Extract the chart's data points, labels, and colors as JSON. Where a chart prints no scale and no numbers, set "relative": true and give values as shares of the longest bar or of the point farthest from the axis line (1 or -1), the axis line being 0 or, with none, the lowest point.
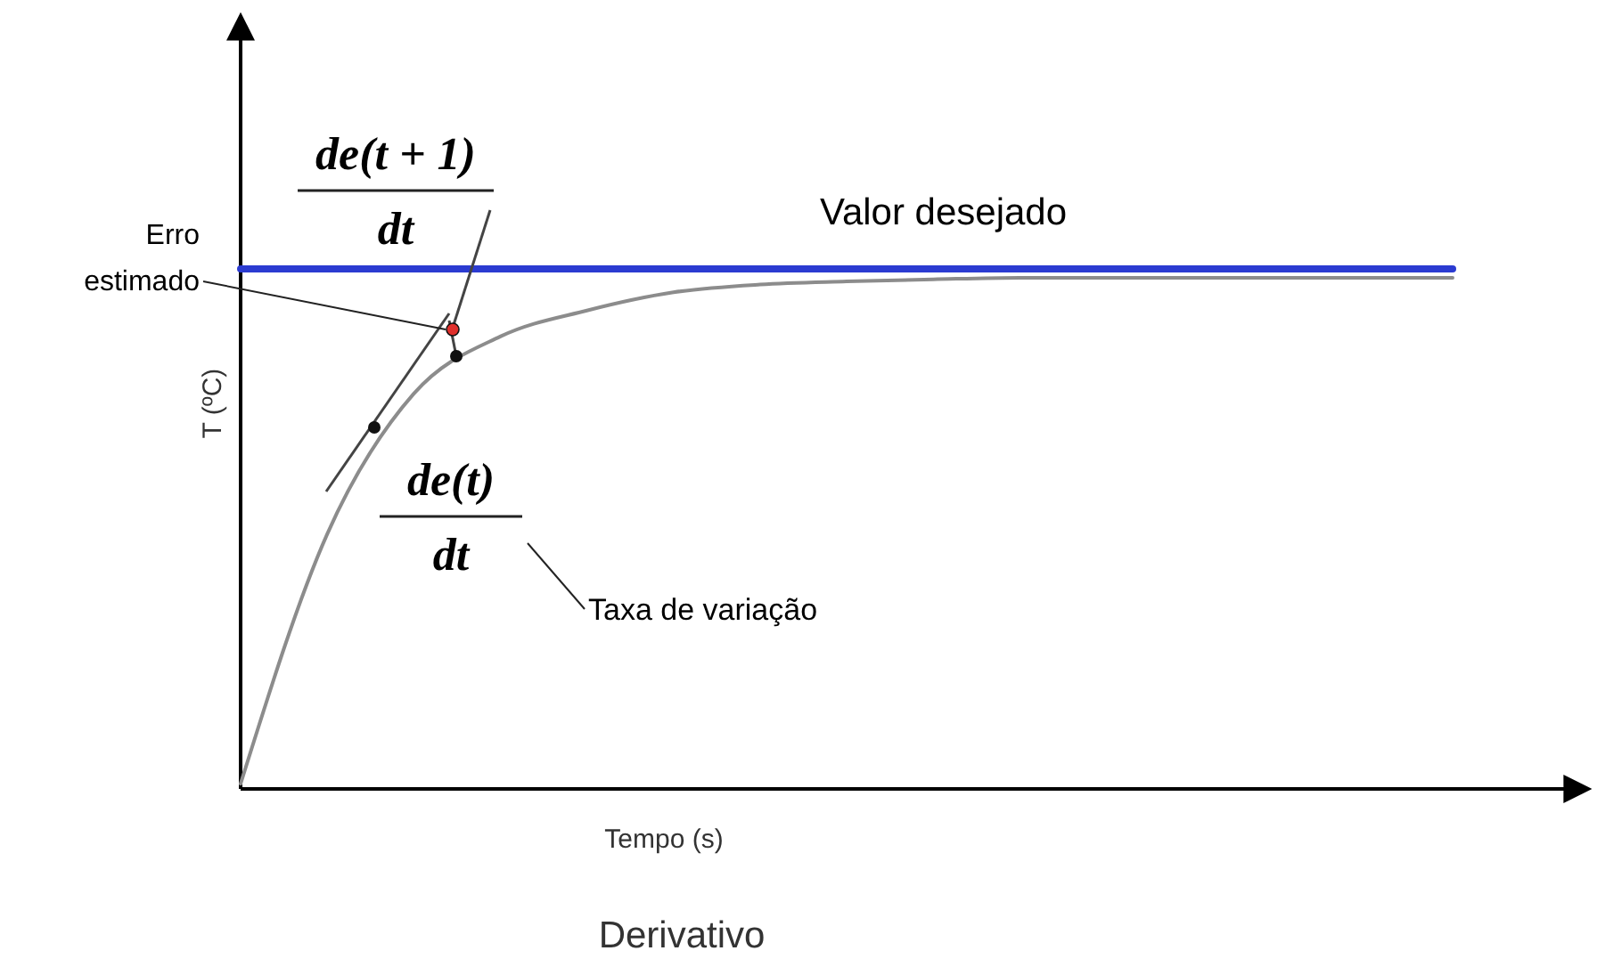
{
  "chart_data": {
    "type": "line",
    "relative": true,
    "title": "Derivativo",
    "xlabel": "Tempo (s)",
    "ylabel": "T (ºC)",
    "categories": [
      null,
      null,
      null,
      null,
      null,
      null,
      null,
      null,
      null,
      null,
      null,
      null,
      null,
      null,
      null
    ],
    "series": [
      {
        "color": "#8c8c8c",
        "values": [
          0.01,
          0.49,
          0.76,
          0.87,
          0.92,
          0.955,
          0.97,
          0.976,
          0.98,
          0.983,
          0.983,
          0.983,
          0.983,
          0.983,
          0.983
        ]
      },
      {
        "name": "Valor desejado",
        "color": "#2b3bd1",
        "values": [
          1,
          1,
          1,
          1,
          1,
          1,
          1,
          1,
          1,
          1,
          1,
          1,
          1,
          1,
          1
        ]
      }
    ],
    "annotations": [
      "de(t + 1)",
      "dt",
      "Erro estimado",
      "de(t)",
      "dt",
      "Taxa de variação"
    ]
  }
}
